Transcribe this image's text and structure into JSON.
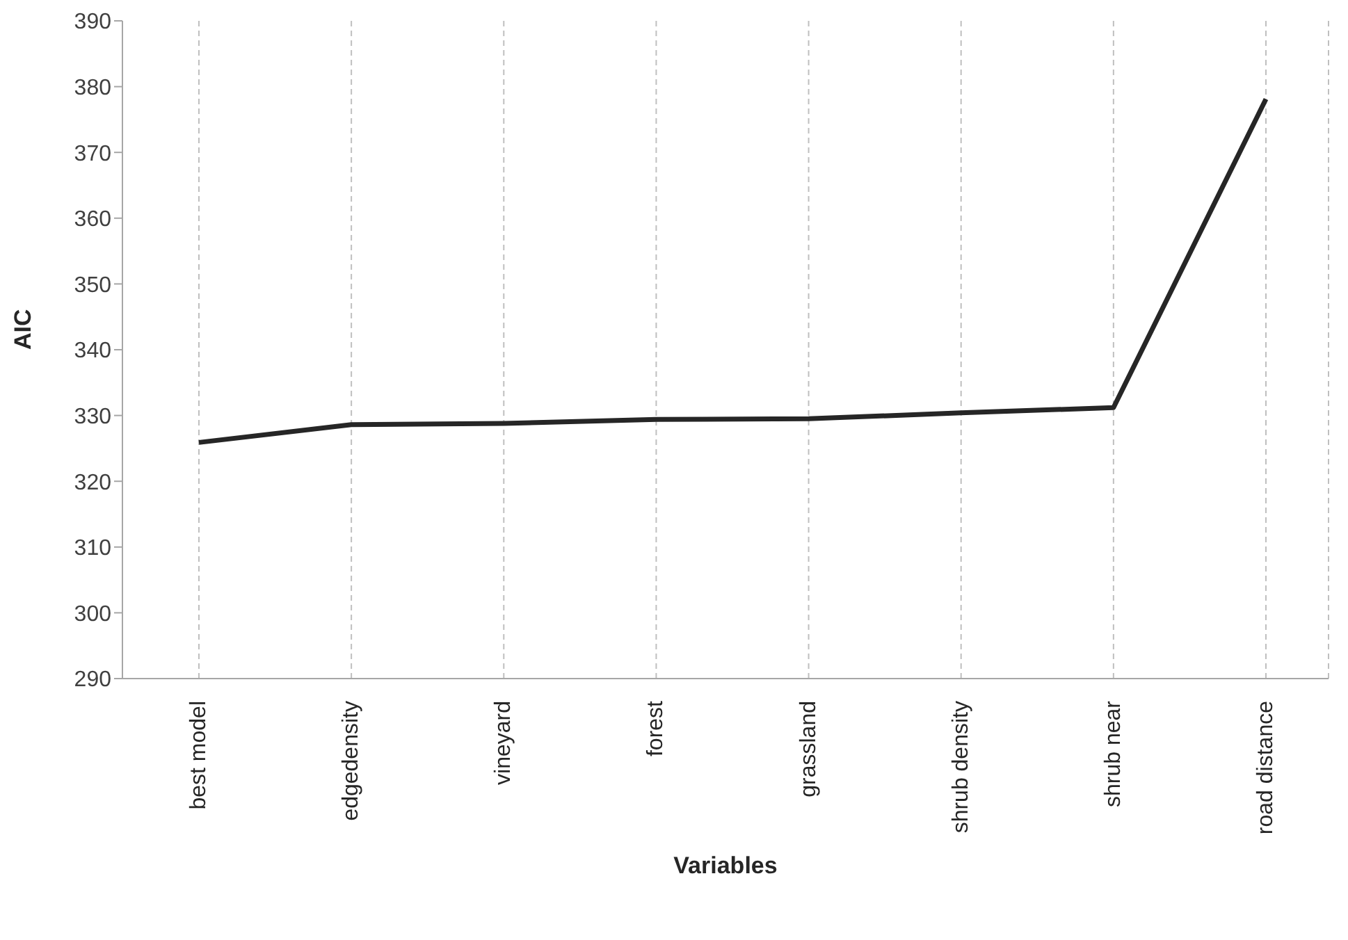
{
  "chart_data": {
    "type": "line",
    "xlabel": "Variables",
    "ylabel": "AIC",
    "categories": [
      "best model",
      "edgedensity",
      "vineyard",
      "forest",
      "grassland",
      "shrub density",
      "shrub near",
      "road distance"
    ],
    "series": [
      {
        "color": "#262626",
        "values": [
          325.9,
          328.6,
          328.8,
          329.4,
          329.5,
          330.4,
          331.2,
          378.1
        ]
      }
    ],
    "ylim": [
      290,
      390
    ],
    "yticks": [
      290,
      300,
      310,
      320,
      330,
      340,
      350,
      360,
      370,
      380,
      390
    ],
    "grid": "x",
    "legend": false,
    "marker": "none",
    "line_style": "solid"
  }
}
